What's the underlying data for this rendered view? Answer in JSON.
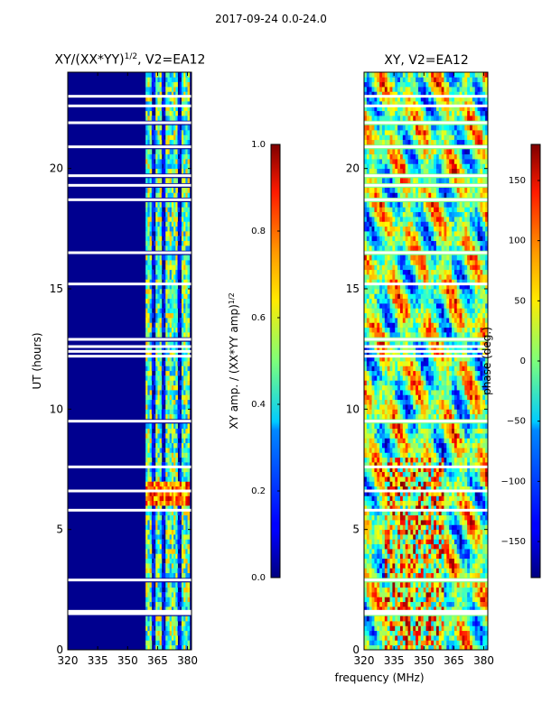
{
  "suptitle": "2017-09-24 0.0-24.0",
  "colors": {
    "text": "#000000",
    "gap": "#ffffff",
    "background": "#00008f"
  },
  "chart_data": [
    {
      "id": "amp",
      "type": "heatmap",
      "title_main": "XY/(XX*YY)",
      "title_sup": "1/2",
      "title_tail": ", V2=EA12",
      "xlabel": "",
      "ylabel": "UT (hours)",
      "xlim": [
        320,
        382
      ],
      "ylim": [
        0,
        24
      ],
      "xticks": [
        320,
        335,
        350,
        365,
        380
      ],
      "yticks": [
        0,
        5,
        10,
        15,
        20
      ],
      "colorbar": {
        "label_main": "XY amp. / (XX*YY amp)",
        "label_sup": "1/2",
        "range": [
          0.0,
          1.0
        ],
        "ticks": [
          "0.0",
          "0.2",
          "0.4",
          "0.6",
          "0.8",
          "1.0"
        ],
        "colormap": "jet"
      }
    },
    {
      "id": "phase",
      "type": "heatmap",
      "title_main": "XY, V2=EA12",
      "xlabel": "frequency (MHz)",
      "ylabel": "",
      "xlim": [
        320,
        382
      ],
      "ylim": [
        0,
        24
      ],
      "xticks": [
        320,
        335,
        350,
        365,
        380
      ],
      "yticks": [
        0,
        5,
        10,
        15,
        20
      ],
      "colorbar": {
        "label_main": "phase (deg.)",
        "range": [
          -180,
          180
        ],
        "ticks": [
          "−150",
          "−100",
          "−50",
          "0",
          "50",
          "100",
          "150"
        ],
        "tick_values": [
          -150,
          -100,
          -50,
          0,
          50,
          100,
          150
        ],
        "colormap": "jet"
      }
    }
  ],
  "gaps_ut": [
    1.5,
    1.6,
    2.9,
    5.8,
    6.6,
    7.6,
    9.5,
    12.2,
    12.4,
    12.6,
    12.9,
    15.2,
    16.5,
    18.7,
    19.3,
    19.7,
    20.9,
    21.9,
    22.6,
    23.0
  ]
}
